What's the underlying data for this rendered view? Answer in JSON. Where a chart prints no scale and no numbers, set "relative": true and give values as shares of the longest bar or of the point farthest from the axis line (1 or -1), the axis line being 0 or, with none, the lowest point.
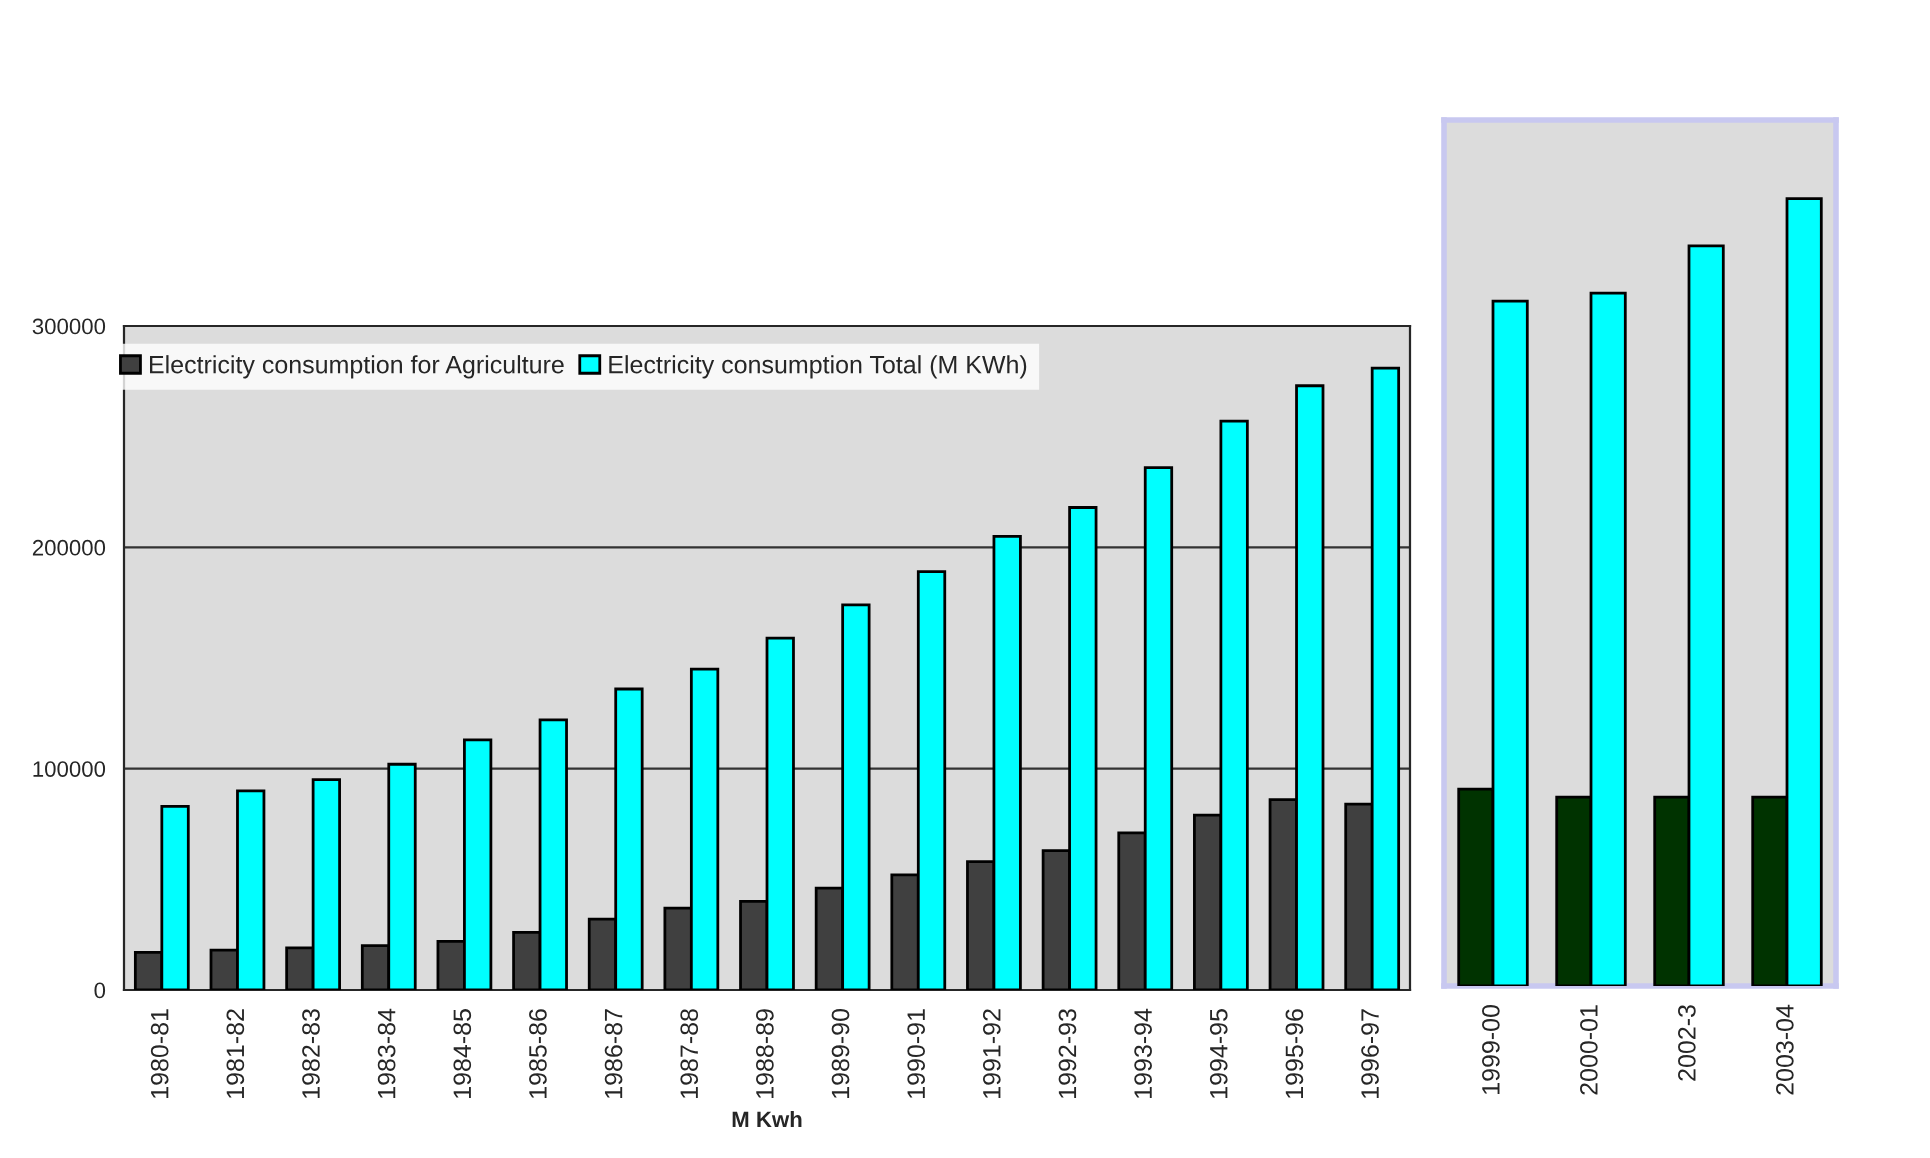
{
  "chart_data": [
    {
      "type": "bar",
      "categories": [
        "1980-81",
        "1981-82",
        "1982-83",
        "1983-84",
        "1984-85",
        "1985-86",
        "1986-87",
        "1987-88",
        "1988-89",
        "1989-90",
        "1990-91",
        "1991-92",
        "1992-93",
        "1993-94",
        "1994-95",
        "1995-96",
        "1996-97"
      ],
      "series": [
        {
          "name": "Electricity consumption for Agriculture",
          "color": "#404040",
          "values": [
            17000,
            18000,
            19000,
            20000,
            22000,
            26000,
            32000,
            37000,
            40000,
            46000,
            52000,
            58000,
            63000,
            71000,
            79000,
            86000,
            84000
          ]
        },
        {
          "name": "Electricity consumption Total (M KWh)",
          "color": "#00ffff",
          "values": [
            83000,
            90000,
            95000,
            102000,
            113000,
            122000,
            136000,
            145000,
            159000,
            174000,
            189000,
            205000,
            218000,
            236000,
            257000,
            273000,
            281000
          ]
        }
      ],
      "xlabel": "M Kwh",
      "ylim": [
        0,
        300000
      ],
      "yticks": [
        0,
        100000,
        200000,
        300000
      ],
      "grid": "y",
      "legend": "top"
    },
    {
      "type": "bar",
      "categories": [
        "1999-00",
        "2000-01",
        "2002-3",
        "2003-04"
      ],
      "series": [
        {
          "color": "#003300",
          "values": [
            0.25,
            0.24,
            0.24,
            0.24
          ]
        },
        {
          "color": "#00ffff",
          "values": [
            0.87,
            0.88,
            0.94,
            1
          ]
        }
      ],
      "relative": true,
      "tick_labels": "x"
    }
  ]
}
